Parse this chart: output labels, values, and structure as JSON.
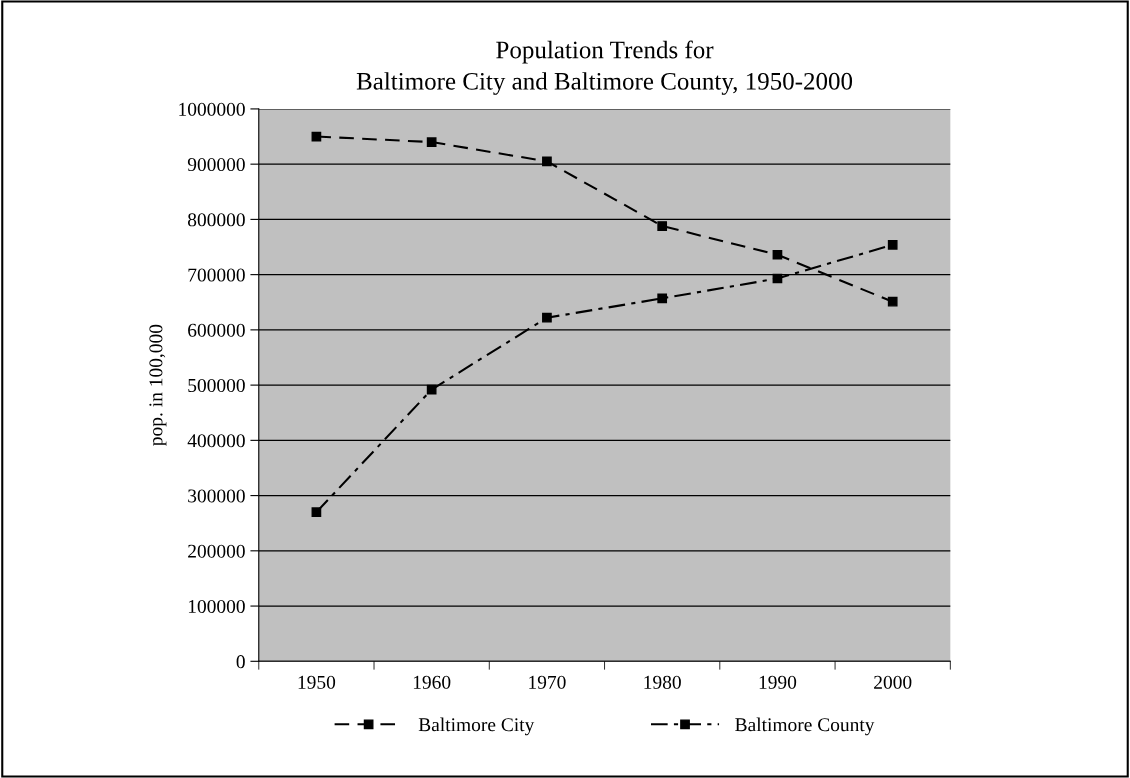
{
  "chart_data": {
    "type": "line",
    "title": "Population Trends for\nBaltimore City and Baltimore County, 1950-2000",
    "ylabel": "pop. in 100,000",
    "categories": [
      "1950",
      "1960",
      "1970",
      "1980",
      "1990",
      "2000"
    ],
    "series": [
      {
        "name": "Baltimore City",
        "color": "#000000",
        "line_style": "dashed",
        "marker": "square",
        "values": [
          950000,
          940000,
          905000,
          788000,
          736000,
          651000
        ]
      },
      {
        "name": "Baltimore County",
        "color": "#000000",
        "line_style": "dashdot",
        "marker": "square",
        "values": [
          270000,
          492000,
          622000,
          657000,
          693000,
          754000
        ]
      }
    ],
    "ylim": [
      0,
      1000000
    ],
    "yticks": [
      0,
      100000,
      200000,
      300000,
      400000,
      500000,
      600000,
      700000,
      800000,
      900000,
      1000000
    ],
    "grid": "y",
    "legend": "bottom"
  }
}
